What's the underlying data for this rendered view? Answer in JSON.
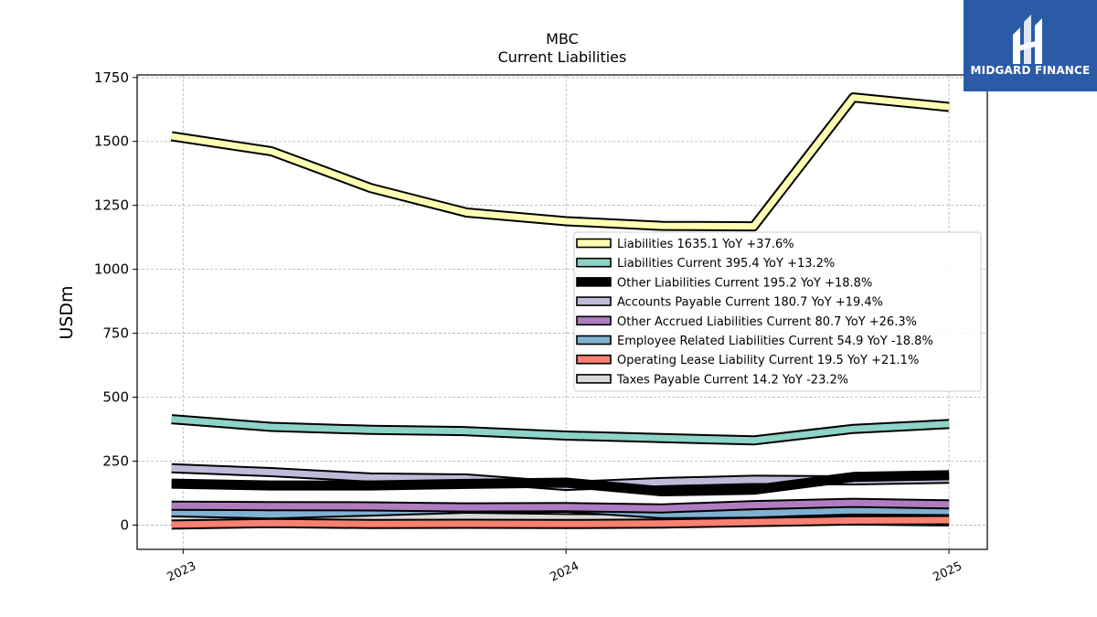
{
  "chart_data": {
    "type": "line",
    "title": "MBC",
    "subtitle": "Current  Liabilities",
    "ylabel": "USDm",
    "xlabel": "",
    "ylim": [
      -95,
      1760
    ],
    "yticks": [
      0,
      250,
      500,
      750,
      1000,
      1250,
      1500,
      1750
    ],
    "ytick_labels": [
      "0",
      "250",
      "500",
      "750",
      "1000",
      "1250",
      "1500",
      "1750"
    ],
    "xlim": [
      2022.88,
      2025.1
    ],
    "xticks": [
      2023,
      2024,
      2025
    ],
    "xtick_labels": [
      "2023",
      "2024",
      "2025"
    ],
    "grid": true,
    "legend_position": "center-right",
    "x": [
      2022.97,
      2023.23,
      2023.49,
      2023.74,
      2024.0,
      2024.25,
      2024.49,
      2024.75,
      2025.0
    ],
    "series": [
      {
        "name": "Liabilities",
        "legend": "Liabilities  1635.1 YoY +37.6%",
        "color": "#ffffb3",
        "values": [
          1520,
          1462,
          1318,
          1222,
          1188,
          1170,
          1168,
          1672,
          1635
        ]
      },
      {
        "name": "Liabilities Current",
        "legend": "Liabilities Current  395.4 YoY +13.2%",
        "color": "#8dd3c7",
        "values": [
          414,
          384,
          372,
          367,
          350,
          340,
          331,
          376,
          395
        ]
      },
      {
        "name": "Other Liabilities Current",
        "legend": "Other Liabilities Current  195.2 YoY +18.8%",
        "color": "#000000",
        "values": [
          162,
          155,
          155,
          161,
          166,
          132,
          138,
          188,
          195
        ]
      },
      {
        "name": "Accounts Payable Current",
        "legend": "Accounts Payable Current  180.7 YoY +19.4%",
        "color": "#bebada",
        "values": [
          222,
          207,
          186,
          182,
          153,
          168,
          177,
          175,
          181
        ]
      },
      {
        "name": "Other Accrued Liabilities Current",
        "legend": "Other Accrued Liabilities Current  80.7 YoY +26.3%",
        "color": "#b07cc0",
        "values": [
          76,
          74,
          73,
          69,
          70,
          65,
          78,
          87,
          81
        ]
      },
      {
        "name": "Employee Related Liabilities Current",
        "legend": "Employee Related Liabilities Current  54.9 YoY -18.8%",
        "color": "#80b1d3",
        "values": [
          50,
          42,
          53,
          64,
          68,
          43,
          46,
          58,
          55
        ]
      },
      {
        "name": "Operating Lease Liability Current",
        "legend": "Operating Lease Liability Current  19.5 YoY +21.1%",
        "color": "#fb8072",
        "values": [
          2,
          8,
          4,
          5,
          4,
          6,
          12,
          18,
          19.5
        ]
      },
      {
        "name": "Taxes Payable Current",
        "legend": "Taxes Payable Current  14.2 YoY -23.2%",
        "color": "#d9d9d9",
        "values": [
          20,
          34,
          28,
          32,
          27,
          24,
          20,
          18,
          14.2
        ]
      }
    ]
  },
  "logo": {
    "text": "MIDGARD FINANCE",
    "bg_color": "#2b5ba7"
  }
}
